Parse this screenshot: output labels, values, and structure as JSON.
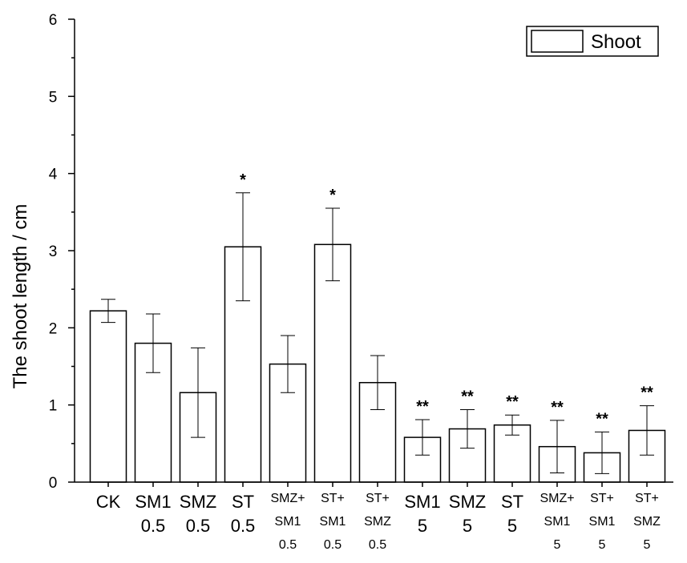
{
  "chart_data": {
    "type": "bar",
    "ylabel": "The shoot length / cm",
    "ylim": [
      0,
      6
    ],
    "yticks": [
      "0",
      "1",
      "2",
      "3",
      "4",
      "5",
      "6"
    ],
    "legend": {
      "label": "Shoot",
      "position": "top-right"
    },
    "categories": [
      {
        "lines": [
          "CK"
        ],
        "size": "big"
      },
      {
        "lines": [
          "SM1",
          "0.5"
        ],
        "size": "big"
      },
      {
        "lines": [
          "SMZ",
          "0.5"
        ],
        "size": "big"
      },
      {
        "lines": [
          "ST",
          "0.5"
        ],
        "size": "big"
      },
      {
        "lines": [
          "SMZ+",
          "SM1",
          "0.5"
        ],
        "size": "small"
      },
      {
        "lines": [
          "ST+",
          "SM1",
          "0.5"
        ],
        "size": "small"
      },
      {
        "lines": [
          "ST+",
          "SMZ",
          "0.5"
        ],
        "size": "small"
      },
      {
        "lines": [
          "SM1",
          "5"
        ],
        "size": "big"
      },
      {
        "lines": [
          "SMZ",
          "5"
        ],
        "size": "big"
      },
      {
        "lines": [
          "ST",
          "5"
        ],
        "size": "big"
      },
      {
        "lines": [
          "SMZ+",
          "SM1",
          "5"
        ],
        "size": "small"
      },
      {
        "lines": [
          "ST+",
          "SM1",
          "5"
        ],
        "size": "small"
      },
      {
        "lines": [
          "ST+",
          "SMZ",
          "5"
        ],
        "size": "small"
      }
    ],
    "values": [
      2.22,
      1.8,
      1.16,
      3.05,
      1.53,
      3.08,
      1.29,
      0.58,
      0.69,
      0.74,
      0.46,
      0.38,
      0.67
    ],
    "errors": [
      0.15,
      0.38,
      0.58,
      0.7,
      0.37,
      0.47,
      0.35,
      0.23,
      0.25,
      0.13,
      0.34,
      0.27,
      0.32
    ],
    "significance": [
      "",
      "",
      "",
      "*",
      "",
      "*",
      "",
      "**",
      "**",
      "**",
      "**",
      "**",
      "**"
    ]
  }
}
